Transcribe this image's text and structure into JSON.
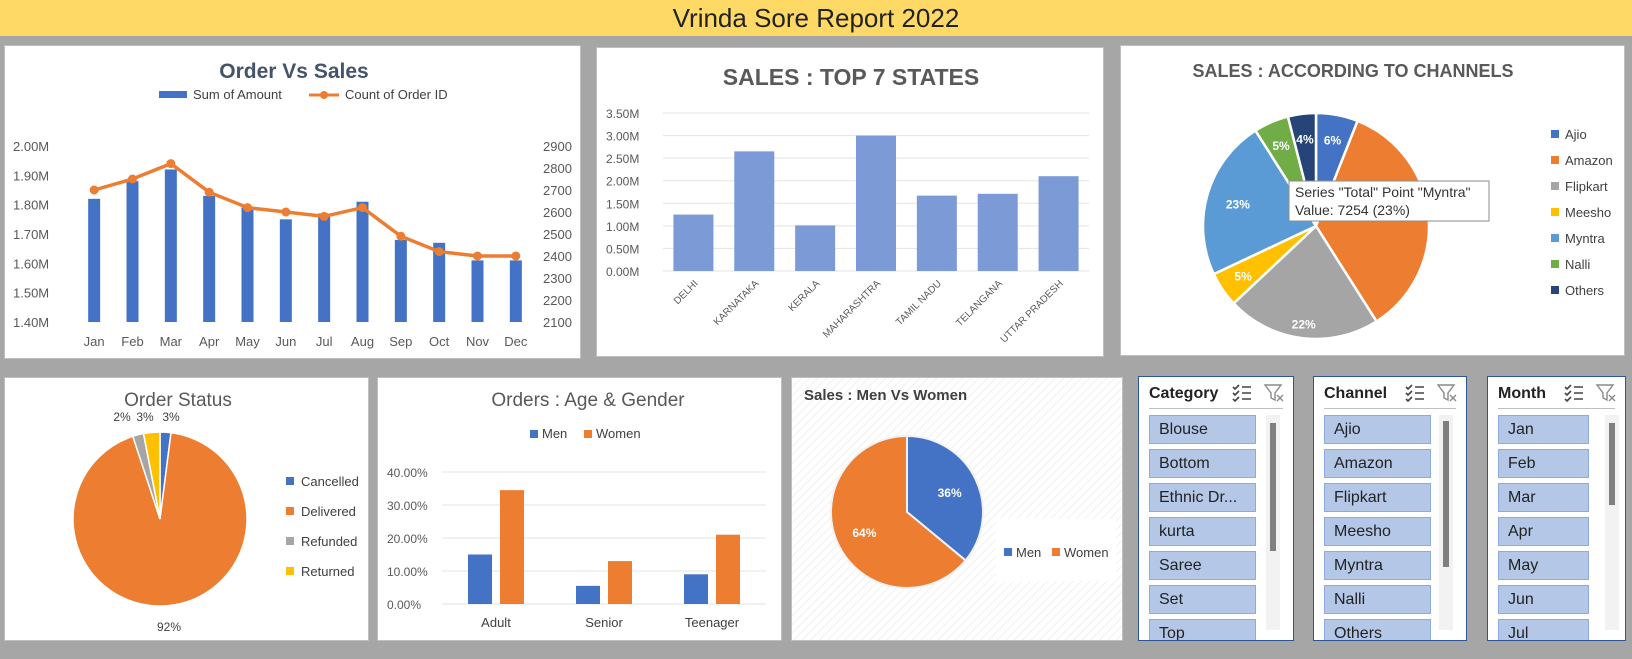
{
  "report": {
    "title": "Vrinda Sore Report 2022"
  },
  "order_vs_sales": {
    "title": "Order Vs Sales",
    "legend": [
      "Sum of Amount",
      "Count of Order ID"
    ],
    "months": [
      "Jan",
      "Feb",
      "Mar",
      "Apr",
      "May",
      "Jun",
      "Jul",
      "Aug",
      "Sep",
      "Oct",
      "Nov",
      "Dec"
    ],
    "left_ticks": [
      "2.00M",
      "1.90M",
      "1.80M",
      "1.70M",
      "1.60M",
      "1.50M",
      "1.40M"
    ],
    "right_ticks": [
      "2900",
      "2800",
      "2700",
      "2600",
      "2500",
      "2400",
      "2300",
      "2200",
      "2100"
    ]
  },
  "top_states": {
    "title": "SALES : TOP 7 STATES",
    "ticks": [
      "3.50M",
      "3.00M",
      "2.50M",
      "2.00M",
      "1.50M",
      "1.00M",
      "0.50M",
      "0.00M"
    ],
    "states": [
      "DELHI",
      "KARNATAKA",
      "KERALA",
      "MAHARASHTRA",
      "TAMIL NADU",
      "TELANGANA",
      "UTTAR PRADESH"
    ]
  },
  "channels": {
    "title": "SALES : ACCORDING TO CHANNELS",
    "labels": [
      "6%",
      "23%",
      "5%",
      "22%",
      "5%",
      "4%"
    ],
    "legend": [
      "Ajio",
      "Amazon",
      "Flipkart",
      "Meesho",
      "Myntra",
      "Nalli",
      "Others"
    ],
    "tooltip_line1": "Series \"Total\" Point \"Myntra\"",
    "tooltip_line2": "Value: 7254 (23%)"
  },
  "order_status": {
    "title": "Order Status",
    "labels": [
      "2%",
      "3%",
      "3%",
      "92%"
    ],
    "legend": [
      "Cancelled",
      "Delivered",
      "Refunded",
      "Returned"
    ]
  },
  "age_gender": {
    "title": "Orders : Age & Gender",
    "legend": [
      "Men",
      "Women"
    ],
    "ticks": [
      "40.00%",
      "30.00%",
      "20.00%",
      "10.00%",
      "0.00%"
    ],
    "groups": [
      "Adult",
      "Senior",
      "Teenager"
    ]
  },
  "men_women": {
    "title": "Sales : Men Vs Women",
    "labels": [
      "36%",
      "64%"
    ],
    "legend": [
      "Men",
      "Women"
    ]
  },
  "slicers": {
    "category": {
      "header": "Category",
      "items": [
        "Blouse",
        "Bottom",
        "Ethnic Dr...",
        "kurta",
        "Saree",
        "Set",
        "Top"
      ]
    },
    "channel": {
      "header": "Channel",
      "items": [
        "Ajio",
        "Amazon",
        "Flipkart",
        "Meesho",
        "Myntra",
        "Nalli",
        "Others"
      ]
    },
    "month": {
      "header": "Month",
      "items": [
        "Jan",
        "Feb",
        "Mar",
        "Apr",
        "May",
        "Jun",
        "Jul"
      ]
    }
  },
  "colors": {
    "blue": "#4472c4",
    "orange": "#ed7d31",
    "gray": "#a5a5a5",
    "gold": "#ffc000",
    "light_blue": "#5b9bd5",
    "green": "#70ad47",
    "navy": "#264478",
    "bar_blue": "#7b9ad6",
    "title_band": "#ffd966",
    "slicer_fill": "#b4c7e7"
  },
  "chart_data": [
    {
      "type": "bar+line",
      "title": "Order Vs Sales",
      "categories": [
        "Jan",
        "Feb",
        "Mar",
        "Apr",
        "May",
        "Jun",
        "Jul",
        "Aug",
        "Sep",
        "Oct",
        "Nov",
        "Dec"
      ],
      "series": [
        {
          "name": "Sum of Amount",
          "type": "bar",
          "axis": "left",
          "values": [
            1.82,
            1.88,
            1.92,
            1.83,
            1.79,
            1.75,
            1.77,
            1.81,
            1.68,
            1.67,
            1.61,
            1.61
          ]
        },
        {
          "name": "Count of Order ID",
          "type": "line",
          "axis": "right",
          "values": [
            2700,
            2750,
            2820,
            2690,
            2620,
            2600,
            2580,
            2620,
            2490,
            2420,
            2400,
            2400
          ]
        }
      ],
      "ylim_left": [
        1.4,
        2.0
      ],
      "ylim_right": [
        2100,
        2900
      ],
      "legend": "top",
      "grid": false
    },
    {
      "type": "bar",
      "title": "SALES : TOP 7 STATES",
      "categories": [
        "DELHI",
        "KARNATAKA",
        "KERALA",
        "MAHARASHTRA",
        "TAMIL NADU",
        "TELANGANA",
        "UTTAR PRADESH"
      ],
      "values": [
        1.25,
        2.65,
        1.01,
        3.0,
        1.67,
        1.71,
        2.1
      ],
      "ylim": [
        0,
        3.5
      ],
      "grid": true
    },
    {
      "type": "pie",
      "title": "SALES : ACCORDING TO CHANNELS",
      "labels": [
        "Ajio",
        "Amazon",
        "Flipkart",
        "Meesho",
        "Myntra",
        "Nalli",
        "Others"
      ],
      "values": [
        6,
        35,
        22,
        5,
        23,
        5,
        4
      ],
      "legend": "right"
    },
    {
      "type": "pie",
      "title": "Order Status",
      "labels": [
        "Cancelled",
        "Delivered",
        "Refunded",
        "Returned"
      ],
      "values": [
        2,
        92,
        2,
        3
      ],
      "legend": "right"
    },
    {
      "type": "bar",
      "title": "Orders : Age & Gender",
      "categories": [
        "Adult",
        "Senior",
        "Teenager"
      ],
      "series": [
        {
          "name": "Men",
          "values": [
            15.0,
            5.5,
            9.0
          ]
        },
        {
          "name": "Women",
          "values": [
            34.5,
            13.0,
            21.0
          ]
        }
      ],
      "ylim": [
        0,
        40
      ],
      "legend": "top",
      "grid": true
    },
    {
      "type": "pie",
      "title": "Sales : Men Vs Women",
      "labels": [
        "Men",
        "Women"
      ],
      "values": [
        36,
        64
      ],
      "legend": "right"
    }
  ]
}
